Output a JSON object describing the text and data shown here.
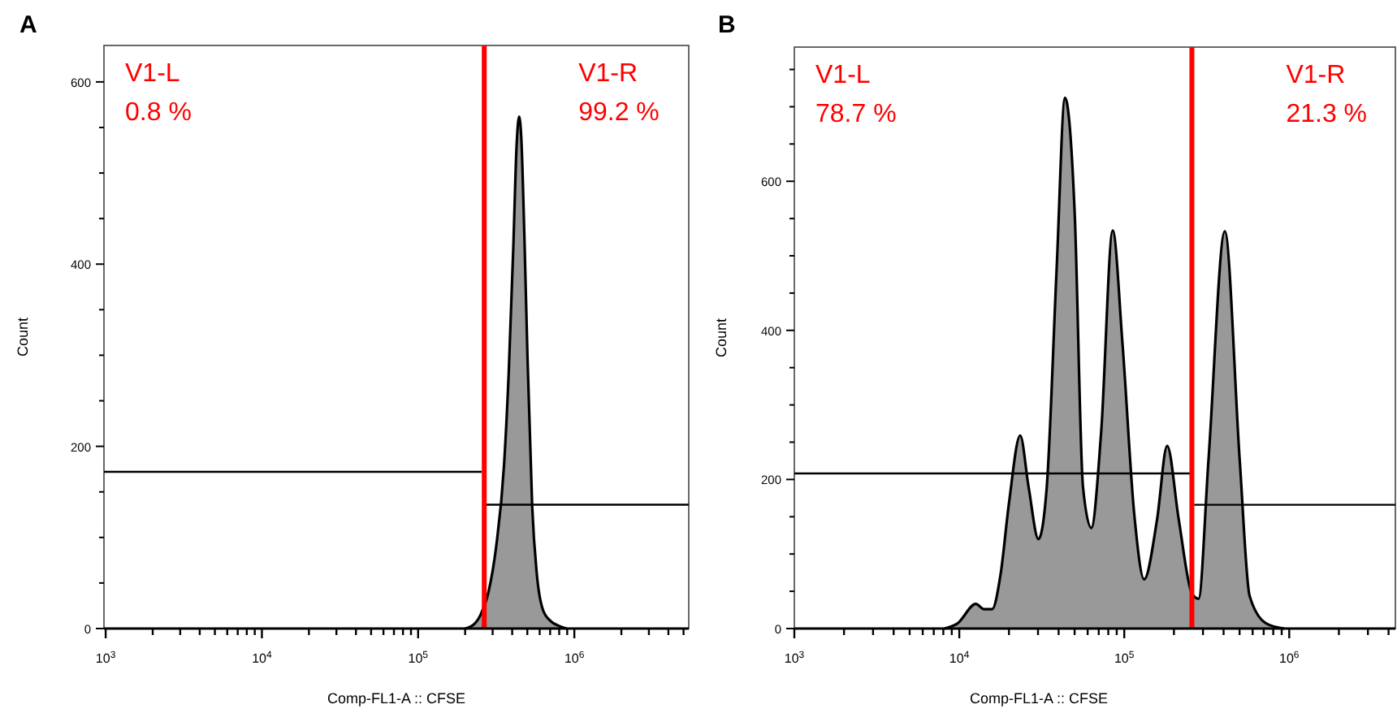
{
  "chart_data": [
    {
      "type": "area",
      "title": "A",
      "xlabel": "Comp-FL1-A :: CFSE",
      "ylabel": "Count",
      "log": "x",
      "xlim": [
        975,
        5400000
      ],
      "ylim": [
        0,
        640
      ],
      "xticks": [
        {
          "value": 1000,
          "label": "10$^{3}$"
        },
        {
          "value": 2000,
          "label": null
        },
        {
          "value": 3000,
          "label": null
        },
        {
          "value": 4000,
          "label": null
        },
        {
          "value": 5000,
          "label": null
        },
        {
          "value": 6000,
          "label": null
        },
        {
          "value": 7000,
          "label": null
        },
        {
          "value": 8000,
          "label": null
        },
        {
          "value": 9000,
          "label": null
        },
        {
          "value": 10000,
          "label": "10$^{4}$"
        },
        {
          "value": 20000,
          "label": null
        },
        {
          "value": 30000,
          "label": null
        },
        {
          "value": 40000,
          "label": null
        },
        {
          "value": 50000,
          "label": null
        },
        {
          "value": 60000,
          "label": null
        },
        {
          "value": 70000,
          "label": null
        },
        {
          "value": 80000,
          "label": null
        },
        {
          "value": 90000,
          "label": null
        },
        {
          "value": 100000,
          "label": "10$^{5}$"
        },
        {
          "value": 200000,
          "label": null
        },
        {
          "value": 300000,
          "label": null
        },
        {
          "value": 400000,
          "label": null
        },
        {
          "value": 500000,
          "label": null
        },
        {
          "value": 600000,
          "label": null
        },
        {
          "value": 700000,
          "label": null
        },
        {
          "value": 800000,
          "label": null
        },
        {
          "value": 900000,
          "label": null
        },
        {
          "value": 1000000,
          "label": "10$^{6}$"
        },
        {
          "value": 2000000,
          "label": null
        },
        {
          "value": 3000000,
          "label": null
        },
        {
          "value": 4000000,
          "label": null
        },
        {
          "value": 5000000,
          "label": null
        }
      ],
      "yticks": [
        0,
        {
          "value": 50,
          "label": null
        },
        {
          "value": 100,
          "label": null
        },
        {
          "value": 150,
          "label": null
        },
        200,
        {
          "value": 250,
          "label": null
        },
        {
          "value": 300,
          "label": null
        },
        {
          "value": 350,
          "label": null
        },
        400,
        {
          "value": 450,
          "label": null
        },
        {
          "value": 500,
          "label": null
        },
        {
          "value": 550,
          "label": null
        },
        600
      ],
      "series": [
        {
          "color": "#999999",
          "x": [
            200000,
            229000,
            251000,
            282000,
            316000,
            355000,
            380000,
            407000,
            427000,
            443000,
            457000,
            479000,
            501000,
            537000,
            575000,
            631000,
            708000,
            794000,
            891000
          ],
          "values": [
            0,
            5,
            15,
            40,
            90,
            180,
            280,
            420,
            530,
            562,
            540,
            430,
            300,
            135,
            60,
            20,
            8,
            3,
            0
          ]
        },
        {
          "type": "line",
          "color": "#000000",
          "x": [
            975,
            255000
          ],
          "values": [
            172,
            172
          ]
        },
        {
          "type": "line",
          "color": "#000000",
          "x": [
            272000,
            5400000
          ],
          "values": [
            136,
            136
          ]
        }
      ],
      "ref_lines": [
        {
          "axis": "x",
          "value": 265000,
          "color": "#ff0000"
        }
      ],
      "annotations": [
        "V1-L\n0.8 %",
        "V1-R\n99.2 %"
      ]
    },
    {
      "type": "area",
      "title": "B",
      "xlabel": "Comp-FL1-A :: CFSE",
      "ylabel": "Count",
      "log": "x",
      "xlim": [
        1000,
        4400000
      ],
      "ylim": [
        0,
        780
      ],
      "xticks": [
        {
          "value": 1000,
          "label": "10$^{3}$"
        },
        {
          "value": 2000,
          "label": null
        },
        {
          "value": 3000,
          "label": null
        },
        {
          "value": 4000,
          "label": null
        },
        {
          "value": 5000,
          "label": null
        },
        {
          "value": 6000,
          "label": null
        },
        {
          "value": 7000,
          "label": null
        },
        {
          "value": 8000,
          "label": null
        },
        {
          "value": 9000,
          "label": null
        },
        {
          "value": 10000,
          "label": "10$^{4}$"
        },
        {
          "value": 20000,
          "label": null
        },
        {
          "value": 30000,
          "label": null
        },
        {
          "value": 40000,
          "label": null
        },
        {
          "value": 50000,
          "label": null
        },
        {
          "value": 60000,
          "label": null
        },
        {
          "value": 70000,
          "label": null
        },
        {
          "value": 80000,
          "label": null
        },
        {
          "value": 90000,
          "label": null
        },
        {
          "value": 100000,
          "label": "10$^{5}$"
        },
        {
          "value": 200000,
          "label": null
        },
        {
          "value": 300000,
          "label": null
        },
        {
          "value": 400000,
          "label": null
        },
        {
          "value": 500000,
          "label": null
        },
        {
          "value": 600000,
          "label": null
        },
        {
          "value": 700000,
          "label": null
        },
        {
          "value": 800000,
          "label": null
        },
        {
          "value": 900000,
          "label": null
        },
        {
          "value": 1000000,
          "label": "10$^{6}$"
        },
        {
          "value": 2000000,
          "label": null
        },
        {
          "value": 3000000,
          "label": null
        },
        {
          "value": 4000000,
          "label": null
        }
      ],
      "yticks": [
        0,
        {
          "value": 50,
          "label": null
        },
        {
          "value": 100,
          "label": null
        },
        {
          "value": 150,
          "label": null
        },
        200,
        {
          "value": 250,
          "label": null
        },
        {
          "value": 300,
          "label": null
        },
        {
          "value": 350,
          "label": null
        },
        400,
        {
          "value": 450,
          "label": null
        },
        {
          "value": 500,
          "label": null
        },
        {
          "value": 550,
          "label": null
        },
        600,
        {
          "value": 650,
          "label": null
        },
        {
          "value": 700,
          "label": null
        },
        {
          "value": 750,
          "label": null
        }
      ],
      "series": [
        {
          "color": "#999999",
          "x": [
            8130,
            9770,
            12600,
            14100,
            15800,
            17800,
            20000,
            23400,
            26300,
            30200,
            33900,
            38900,
            43700,
            50100,
            56200,
            63100,
            72400,
            85100,
            97700,
            115000,
            132000,
            158000,
            182000,
            214000,
            257000,
            282000,
            324000,
            407000,
            501000,
            575000,
            724000,
            933000
          ],
          "values": [
            0,
            7,
            33,
            26,
            26,
            73,
            168,
            259,
            190,
            120,
            190,
            482,
            712,
            555,
            190,
            135,
            263,
            534,
            380,
            153,
            66,
            146,
            245,
            146,
            47,
            40,
            226,
            533,
            226,
            44,
            7,
            0
          ]
        },
        {
          "type": "line",
          "color": "#000000",
          "x": [
            1000,
            250000
          ],
          "values": [
            208,
            208
          ]
        },
        {
          "type": "line",
          "color": "#000000",
          "x": [
            265000,
            4400000
          ],
          "values": [
            166,
            166
          ]
        }
      ],
      "ref_lines": [
        {
          "axis": "x",
          "value": 257000,
          "color": "#ff0000"
        }
      ],
      "annotations": [
        "V1-L\n78.7 %",
        "V1-R\n21.3 %"
      ]
    }
  ]
}
